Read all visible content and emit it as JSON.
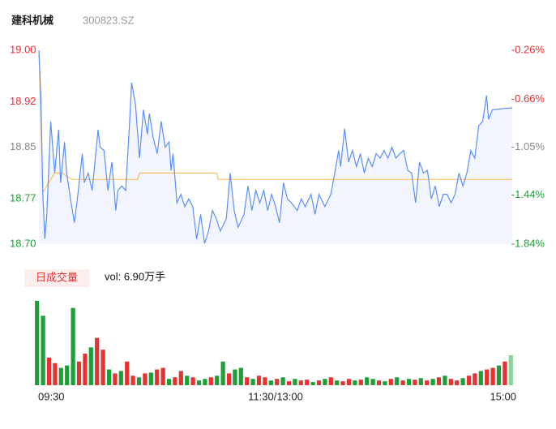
{
  "chart_data": [
    {
      "type": "line",
      "title": "建科机械",
      "subtitle": "300823.SZ",
      "ylim": [
        18.7,
        19.0
      ],
      "yticks": [
        {
          "value": 19.0,
          "label": "19.00"
        },
        {
          "value": 18.92,
          "label": "18.92"
        },
        {
          "value": 18.85,
          "label": "18.85"
        },
        {
          "value": 18.77,
          "label": "18.77"
        },
        {
          "value": 18.7,
          "label": "18.70"
        }
      ],
      "ytick_colors": [
        "#e5312f",
        "#e5312f",
        "#888888",
        "#1aa034",
        "#1aa034"
      ],
      "y2lim": [
        -1.84,
        -0.26
      ],
      "y2ticks": [
        {
          "value": -0.26,
          "label": "-0.26%"
        },
        {
          "value": -0.66,
          "label": "-0.66%"
        },
        {
          "value": -1.05,
          "label": "-1.05%"
        },
        {
          "value": -1.44,
          "label": "-1.44%"
        },
        {
          "value": -1.84,
          "label": "-1.84%"
        }
      ],
      "y2tick_colors": [
        "#e5312f",
        "#e5312f",
        "#888888",
        "#1aa034",
        "#1aa034"
      ],
      "xlim": [
        0,
        240
      ],
      "area_color": "#f2f5fd",
      "series": [
        {
          "color": "#5b8ff9",
          "x": [
            0,
            1,
            2,
            3,
            4,
            6,
            8,
            10,
            11,
            13,
            14,
            16,
            18,
            20,
            22,
            23,
            25,
            27,
            30,
            31,
            33,
            35,
            37,
            39,
            40,
            42,
            44,
            46,
            47,
            49,
            51,
            53,
            55,
            56,
            58,
            60,
            62,
            64,
            66,
            67,
            68,
            70,
            72,
            74,
            76,
            78,
            80,
            82,
            84,
            86,
            88,
            90,
            92,
            95,
            97,
            99,
            101,
            104,
            106,
            108,
            110,
            112,
            114,
            116,
            118,
            120,
            122,
            124,
            126,
            128,
            131,
            133,
            135,
            138,
            140,
            142,
            145,
            148,
            150,
            152,
            153,
            155,
            157,
            159,
            161,
            163,
            165,
            167,
            169,
            171,
            173,
            175,
            177,
            179,
            181,
            183,
            185,
            187,
            189,
            191,
            193,
            195,
            197,
            199,
            201,
            203,
            205,
            207,
            209,
            211,
            213,
            215,
            217,
            219,
            221,
            223,
            225,
            227,
            228,
            230,
            240
          ],
          "values": [
            19.0,
            18.927,
            18.777,
            18.708,
            18.746,
            18.89,
            18.81,
            18.877,
            18.795,
            18.858,
            18.812,
            18.77,
            18.733,
            18.783,
            18.84,
            18.795,
            18.81,
            18.783,
            18.877,
            18.85,
            18.845,
            18.783,
            18.827,
            18.752,
            18.783,
            18.79,
            18.783,
            18.89,
            18.95,
            18.915,
            18.833,
            18.908,
            18.87,
            18.902,
            18.864,
            18.84,
            18.89,
            18.85,
            18.858,
            18.814,
            18.84,
            18.764,
            18.777,
            18.758,
            18.77,
            18.758,
            18.708,
            18.746,
            18.701,
            18.72,
            18.752,
            18.739,
            18.72,
            18.739,
            18.81,
            18.752,
            18.726,
            18.746,
            18.79,
            18.752,
            18.783,
            18.764,
            18.783,
            18.752,
            18.777,
            18.758,
            18.733,
            18.795,
            18.77,
            18.764,
            18.752,
            18.77,
            18.758,
            18.777,
            18.746,
            18.777,
            18.758,
            18.777,
            18.81,
            18.845,
            18.82,
            18.879,
            18.827,
            18.845,
            18.82,
            18.84,
            18.81,
            18.833,
            18.82,
            18.84,
            18.833,
            18.845,
            18.833,
            18.85,
            18.833,
            18.84,
            18.845,
            18.814,
            18.81,
            18.764,
            18.827,
            18.81,
            18.814,
            18.77,
            18.79,
            18.758,
            18.777,
            18.777,
            18.764,
            18.777,
            18.81,
            18.79,
            18.81,
            18.845,
            18.833,
            18.883,
            18.89,
            18.93,
            18.893,
            18.908,
            18.911
          ]
        },
        {
          "color": "#f5c060",
          "x": [
            0,
            2,
            4,
            6,
            8,
            12,
            14,
            17,
            50,
            51,
            90,
            91,
            240
          ],
          "values": [
            19.0,
            18.78,
            18.79,
            18.8,
            18.81,
            18.81,
            18.805,
            18.8,
            18.8,
            18.81,
            18.81,
            18.8,
            18.8
          ]
        }
      ]
    },
    {
      "type": "bar",
      "label": "日成交量",
      "info": "vol: 6.90万手",
      "ylim": [
        0,
        110
      ],
      "xlim": [
        0,
        240
      ],
      "xticks": [
        {
          "value": 0,
          "label": "09:30"
        },
        {
          "value": 120,
          "label": "11:30/13:00"
        },
        {
          "value": 240,
          "label": "15:00"
        }
      ],
      "up_color": "#e5312f",
      "down_color": "#1aa034",
      "last_color": "#8fd19a",
      "values": [
        107,
        88,
        35,
        28,
        22,
        25,
        98,
        30,
        40,
        48,
        60,
        45,
        20,
        15,
        18,
        30,
        12,
        10,
        15,
        16,
        20,
        22,
        8,
        10,
        18,
        12,
        10,
        6,
        8,
        10,
        12,
        30,
        15,
        20,
        22,
        10,
        8,
        12,
        10,
        6,
        8,
        10,
        5,
        8,
        6,
        7,
        4,
        6,
        8,
        10,
        6,
        5,
        8,
        6,
        7,
        10,
        8,
        6,
        5,
        8,
        10,
        6,
        8,
        7,
        9,
        6,
        8,
        10,
        12,
        8,
        6,
        9,
        12,
        15,
        18,
        20,
        22,
        25,
        30,
        38
      ],
      "directions": [
        "down",
        "down",
        "up",
        "up",
        "down",
        "down",
        "down",
        "up",
        "up",
        "down",
        "up",
        "up",
        "down",
        "up",
        "down",
        "up",
        "up",
        "down",
        "up",
        "down",
        "up",
        "up",
        "down",
        "up",
        "up",
        "down",
        "up",
        "down",
        "down",
        "up",
        "down",
        "down",
        "up",
        "down",
        "down",
        "up",
        "down",
        "up",
        "up",
        "down",
        "up",
        "down",
        "up",
        "down",
        "up",
        "up",
        "down",
        "up",
        "down",
        "up",
        "down",
        "up",
        "up",
        "down",
        "up",
        "down",
        "down",
        "up",
        "down",
        "up",
        "down",
        "up",
        "down",
        "up",
        "down",
        "up",
        "down",
        "up",
        "down",
        "up",
        "up",
        "down",
        "up",
        "up",
        "down",
        "up",
        "up",
        "down",
        "up",
        "last"
      ]
    }
  ]
}
